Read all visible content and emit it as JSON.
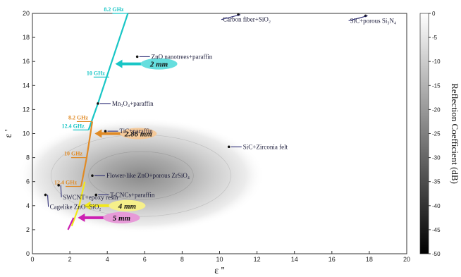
{
  "chart_data": {
    "type": "scatter",
    "xlabel": "ε ''",
    "ylabel": "ε '",
    "xlim": [
      0,
      20
    ],
    "ylim": [
      0,
      20
    ],
    "xticks": [
      0,
      2,
      4,
      6,
      8,
      10,
      12,
      14,
      16,
      18,
      20
    ],
    "yticks": [
      0,
      2,
      4,
      6,
      8,
      10,
      12,
      14,
      16,
      18,
      20
    ],
    "colorbar": {
      "label": "Reflection Coefficient (dB)",
      "ticks": [
        0,
        -5,
        -10,
        -15,
        -20,
        -25,
        -30,
        -35,
        -40,
        -45,
        -50
      ],
      "range": [
        -50,
        0
      ]
    },
    "materials": [
      {
        "label": "Carbon fiber+SiO₂",
        "x": 11.0,
        "y": 19.9
      },
      {
        "label": "SiC+porous Si₃N₄",
        "x": 17.8,
        "y": 19.8
      },
      {
        "label": "ZnO nanotrees+paraffin",
        "x": 5.6,
        "y": 16.4
      },
      {
        "label": "Mn₃O₄+paraffin",
        "x": 3.5,
        "y": 12.5
      },
      {
        "label": "TiC+paraffin",
        "x": 3.9,
        "y": 10.2
      },
      {
        "label": "SiC+Zirconia felt",
        "x": 10.5,
        "y": 8.9
      },
      {
        "label": "Flower-like ZnO+porous ZrSiO₄",
        "x": 3.2,
        "y": 6.5
      },
      {
        "label": "T-CNCs+paraffin",
        "x": 3.4,
        "y": 4.9
      },
      {
        "label": "SWCNT+epoxy resin",
        "x": 1.4,
        "y": 5.7
      },
      {
        "label": "Cagelike ZnO−SiO₂",
        "x": 0.7,
        "y": 4.9
      }
    ],
    "thickness_curves": [
      {
        "name": "2 mm",
        "color": "#19c6c6",
        "label_bg": "#66dede",
        "points": [
          [
            3.0,
            10.3
          ],
          [
            3.5,
            12.5
          ],
          [
            4.2,
            15.8
          ],
          [
            5.1,
            20.0
          ]
        ],
        "freqs": [
          {
            "text": "8.2 GHz",
            "x": 5.1,
            "y": 20.0
          },
          {
            "text": "10 GHz",
            "x": 4.1,
            "y": 14.7
          },
          {
            "text": "12.4 GHz",
            "x": 3.0,
            "y": 10.3
          }
        ]
      },
      {
        "name": "2.86 mm",
        "color": "#e08a25",
        "label_bg": "#f4c99a",
        "points": [
          [
            2.6,
            5.6
          ],
          [
            2.9,
            8.0
          ],
          [
            3.1,
            10.0
          ],
          [
            3.2,
            11.0
          ]
        ],
        "freqs": [
          {
            "text": "8.2 GHz",
            "x": 3.2,
            "y": 11.0
          },
          {
            "text": "10 GHz",
            "x": 2.9,
            "y": 8.0
          },
          {
            "text": "12.4 GHz",
            "x": 2.6,
            "y": 5.6
          }
        ]
      },
      {
        "name": "4 mm",
        "color": "#f2e81a",
        "label_bg": "#f6f08a",
        "points": [
          [
            2.1,
            2.3
          ],
          [
            2.5,
            4.0
          ],
          [
            2.8,
            6.0
          ]
        ],
        "freqs": []
      },
      {
        "name": "5 mm",
        "color": "#cc1fb2",
        "label_bg": "#e79ad8",
        "points": [
          [
            1.9,
            2.0
          ],
          [
            2.2,
            3.0
          ]
        ],
        "freqs": []
      }
    ]
  }
}
